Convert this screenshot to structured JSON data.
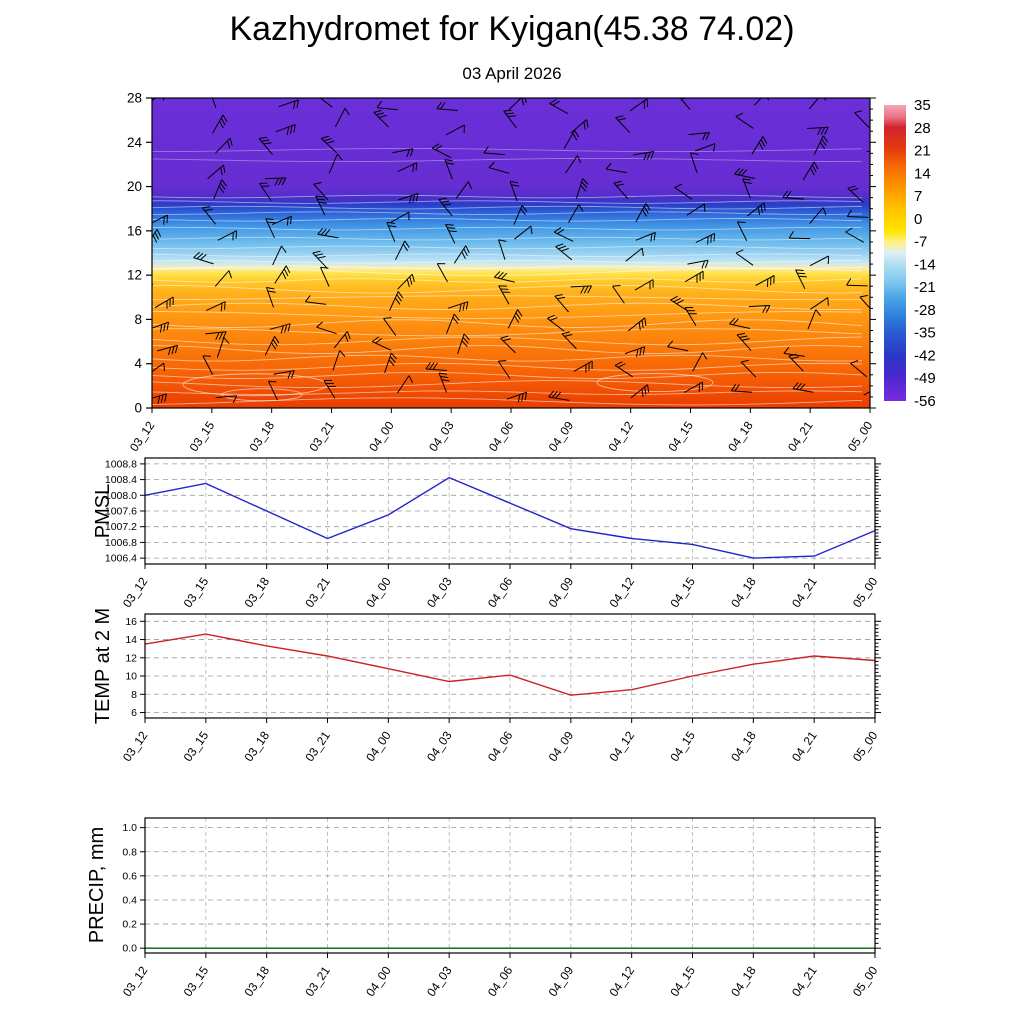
{
  "chart_data": {
    "type": "meteogram",
    "title": "Kazhydromet for Kyigan(45.38 74.02)",
    "subtitle": "03 April 2026",
    "categories": [
      "03_12",
      "03_15",
      "03_18",
      "03_21",
      "04_00",
      "04_03",
      "04_06",
      "04_09",
      "04_12",
      "04_15",
      "04_18",
      "04_21",
      "05_00"
    ],
    "profile": {
      "name": "upper-air-temperature-cross-section",
      "type": "heatmap",
      "ylim": [
        0,
        28
      ],
      "yticks": [
        0,
        4,
        8,
        12,
        16,
        20,
        24,
        28
      ],
      "ytick_labels": [
        "0",
        "4",
        "8",
        "12",
        "16",
        "20",
        "24",
        "28"
      ],
      "wind_barbs_overlay": true,
      "contour_lines_overlay": true,
      "gradient_stops": [
        [
          0.0,
          "#6b2fd8"
        ],
        [
          0.29,
          "#662dd2"
        ],
        [
          0.325,
          "#4630c8"
        ],
        [
          0.345,
          "#2a3fc8"
        ],
        [
          0.37,
          "#2c63d8"
        ],
        [
          0.41,
          "#3f93e4"
        ],
        [
          0.46,
          "#67b8ec"
        ],
        [
          0.5,
          "#97d1f0"
        ],
        [
          0.53,
          "#c6e7f5"
        ],
        [
          0.548,
          "#f6eeb8"
        ],
        [
          0.565,
          "#ffe44d"
        ],
        [
          0.59,
          "#ffca2b"
        ],
        [
          0.63,
          "#ffb01d"
        ],
        [
          0.7,
          "#ff9913"
        ],
        [
          0.8,
          "#fa7d0b"
        ],
        [
          0.9,
          "#f65e06"
        ],
        [
          1.0,
          "#e93c00"
        ]
      ],
      "colorbar": {
        "tick_labels": [
          "35",
          "28",
          "21",
          "14",
          "7",
          "0",
          "-7",
          "-14",
          "-21",
          "-28",
          "-35",
          "-42",
          "-49",
          "-56"
        ],
        "gradient_stops": [
          [
            0.0,
            "#f2a6b4"
          ],
          [
            0.04,
            "#ec7486"
          ],
          [
            0.075,
            "#d42430"
          ],
          [
            0.14,
            "#e23612"
          ],
          [
            0.21,
            "#f56c02"
          ],
          [
            0.285,
            "#fd9a00"
          ],
          [
            0.355,
            "#ffc400"
          ],
          [
            0.425,
            "#ffe400"
          ],
          [
            0.465,
            "#fff18c"
          ],
          [
            0.5,
            "#ddeef6"
          ],
          [
            0.545,
            "#aadcf2"
          ],
          [
            0.6,
            "#7cc6ee"
          ],
          [
            0.65,
            "#4aa6e8"
          ],
          [
            0.71,
            "#2e82dc"
          ],
          [
            0.775,
            "#2a58d0"
          ],
          [
            0.845,
            "#2b38c6"
          ],
          [
            0.91,
            "#4629cc"
          ],
          [
            1.0,
            "#7b2ae0"
          ]
        ]
      }
    },
    "line_panels": [
      {
        "id": "pmsl",
        "label": "PMSL",
        "type": "line",
        "color": "#2323cb",
        "ylim": [
          1006.25,
          1008.95
        ],
        "yticks": [
          1006.4,
          1006.8,
          1007.2,
          1007.6,
          1008.0,
          1008.4,
          1008.8
        ],
        "ytick_labels": [
          "1006.4",
          "1006.8",
          "1007.2",
          "1007.6",
          "1008.0",
          "1008.4",
          "1008.8"
        ],
        "values": [
          1008.0,
          1008.3,
          1007.6,
          1006.9,
          1007.5,
          1008.45,
          1007.8,
          1007.15,
          1006.9,
          1006.75,
          1006.4,
          1006.45,
          1007.1
        ]
      },
      {
        "id": "temp",
        "label": "TEMP at 2 M",
        "type": "line",
        "color": "#cb2323",
        "ylim": [
          5.4,
          16.8
        ],
        "yticks": [
          6,
          8,
          10,
          12,
          14,
          16
        ],
        "ytick_labels": [
          "6",
          "8",
          "10",
          "12",
          "14",
          "16"
        ],
        "values": [
          13.5,
          14.6,
          13.3,
          12.2,
          10.8,
          9.4,
          10.1,
          7.9,
          8.5,
          10.0,
          11.3,
          12.2,
          11.7
        ]
      },
      {
        "id": "precip",
        "label": "PRECIP, mm",
        "type": "line",
        "color": "#006400",
        "ylim": [
          -0.04,
          1.08
        ],
        "yticks": [
          0.0,
          0.2,
          0.4,
          0.6,
          0.8,
          1.0
        ],
        "ytick_labels": [
          "0.0",
          "0.2",
          "0.4",
          "0.6",
          "0.8",
          "1.0"
        ],
        "values": [
          0,
          0,
          0,
          0,
          0,
          0,
          0,
          0,
          0,
          0,
          0,
          0,
          0
        ]
      }
    ]
  }
}
